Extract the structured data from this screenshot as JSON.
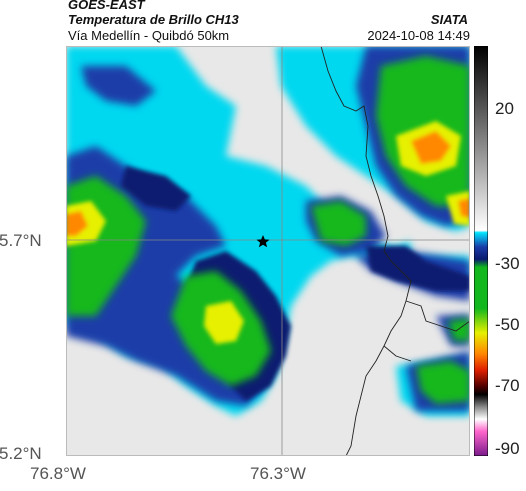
{
  "header": {
    "satellite": "GOES-EAST",
    "product": "Temperatura de Brillo CH13",
    "region": "Vía Medellín - Quibdó 50km",
    "org": "SIATA",
    "datetime": "2024-10-08 14:49"
  },
  "map": {
    "lat_labels": [
      "5.7°N",
      "5.2°N"
    ],
    "lon_labels": [
      "76.8°W",
      "76.3°W"
    ],
    "marker": "star-marker"
  },
  "colorbar": {
    "tick_labels": [
      "20",
      "-30",
      "-50",
      "-70",
      "-90"
    ]
  },
  "colors": {
    "cloud_free": "#e8e8e8",
    "cyan": "#00d8f0",
    "blue": "#1a3ca8",
    "navy": "#0a1a70",
    "green": "#12b81e",
    "yellow": "#e6f000",
    "orange": "#ff8800",
    "red": "#e02000"
  }
}
